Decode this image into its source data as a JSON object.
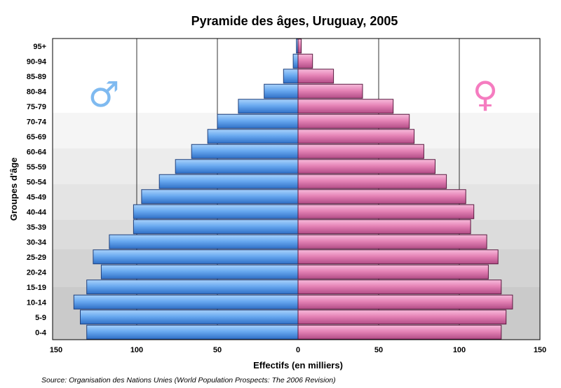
{
  "chart_data": {
    "type": "bar",
    "orientation": "horizontal",
    "title": "Pyramide des âges, Uruguay, 2005",
    "xlabel": "Effectifs (en milliers)",
    "ylabel": "Groupes d'âge",
    "source": "Source: Organisation des Nations Unies (World Population Prospects: The 2006 Revision)",
    "categories": [
      "0-4",
      "5-9",
      "10-14",
      "15-19",
      "20-24",
      "25-29",
      "30-34",
      "35-39",
      "40-44",
      "45-49",
      "50-54",
      "55-59",
      "60-64",
      "65-69",
      "70-74",
      "75-79",
      "80-84",
      "85-89",
      "90-94",
      "95+"
    ],
    "series": [
      {
        "name": "♂",
        "color": "#6aaaf0",
        "values": [
          131,
          135,
          139,
          131,
          122,
          127,
          117,
          102,
          102,
          97,
          86,
          76,
          66,
          56,
          50,
          37,
          21,
          9,
          3,
          1
        ]
      },
      {
        "name": "♀",
        "color": "#e583b6",
        "values": [
          126,
          129,
          133,
          126,
          118,
          124,
          117,
          107,
          109,
          104,
          92,
          85,
          78,
          72,
          69,
          59,
          40,
          22,
          9,
          2
        ]
      }
    ],
    "xlim": [
      -150,
      150
    ],
    "xticks": [
      "150",
      "100",
      "50",
      "0",
      "50",
      "100",
      "150"
    ],
    "grid": "vertical dashed at 50-unit intervals",
    "male_symbol_color": "#7fbaf0",
    "female_symbol_color": "#f57cc0"
  }
}
